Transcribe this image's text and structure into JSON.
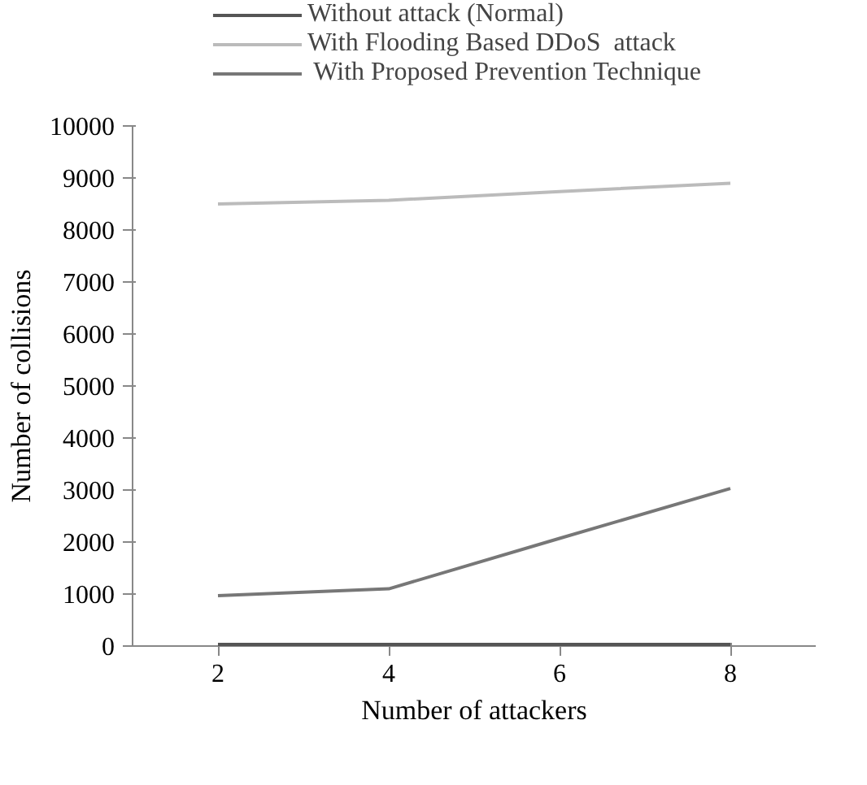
{
  "chart_data": {
    "type": "line",
    "categories": [
      "2",
      "4",
      "6",
      "8"
    ],
    "series": [
      {
        "name": "Without attack (Normal)",
        "color": "#555555",
        "values": [
          30,
          30,
          30,
          30
        ]
      },
      {
        "name": "With Flooding Based DDoS  attack",
        "color": "#bbbbbb",
        "values": [
          8500,
          8570,
          8740,
          8900
        ]
      },
      {
        "name": " With Proposed Prevention Technique",
        "color": "#777777",
        "values": [
          970,
          1100,
          2070,
          3030
        ]
      }
    ],
    "xlabel": "Number of attackers",
    "ylabel": "Number of collisions",
    "ylim": [
      0,
      10000
    ],
    "yticks": [
      0,
      1000,
      2000,
      3000,
      4000,
      5000,
      6000,
      7000,
      8000,
      9000,
      10000
    ],
    "grid": false,
    "legend": "top",
    "marker": "none",
    "line_style": "solid"
  }
}
